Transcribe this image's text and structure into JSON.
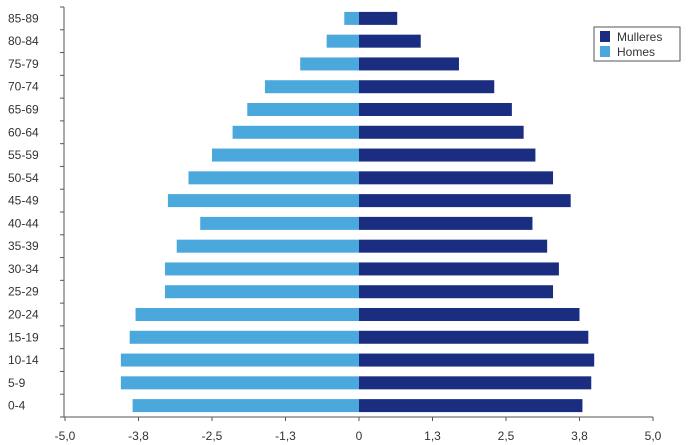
{
  "chart_data": {
    "type": "bar",
    "orientation": "horizontal",
    "categories": [
      "85-89",
      "80-84",
      "75-79",
      "70-74",
      "65-69",
      "60-64",
      "55-59",
      "50-54",
      "45-49",
      "40-44",
      "35-39",
      "30-34",
      "25-29",
      "20-24",
      "15-19",
      "10-14",
      "5-9",
      "0-4"
    ],
    "series": [
      {
        "name": "Mulleres",
        "color": "#1b2d80",
        "values": [
          0.65,
          1.05,
          1.7,
          2.3,
          2.6,
          2.8,
          3.0,
          3.3,
          3.6,
          2.95,
          3.2,
          3.4,
          3.3,
          3.75,
          3.9,
          4.0,
          3.95,
          3.8
        ]
      },
      {
        "name": "Homes",
        "color": "#4aa8dc",
        "values": [
          -0.25,
          -0.55,
          -1.0,
          -1.6,
          -1.9,
          -2.15,
          -2.5,
          -2.9,
          -3.25,
          -2.7,
          -3.1,
          -3.3,
          -3.3,
          -3.8,
          -3.9,
          -4.05,
          -4.05,
          -3.85
        ]
      }
    ],
    "xlim": [
      -5.0,
      5.0
    ],
    "xticks": [
      -5.0,
      -3.75,
      -2.5,
      -1.25,
      0,
      1.25,
      2.5,
      3.75,
      5.0
    ],
    "xtick_labels": [
      "-5,0",
      "-3,8",
      "-2,5",
      "-1,3",
      "0",
      "1,3",
      "2,5",
      "3,8",
      "5,0"
    ],
    "legend_position": "top-right",
    "grid": false
  }
}
